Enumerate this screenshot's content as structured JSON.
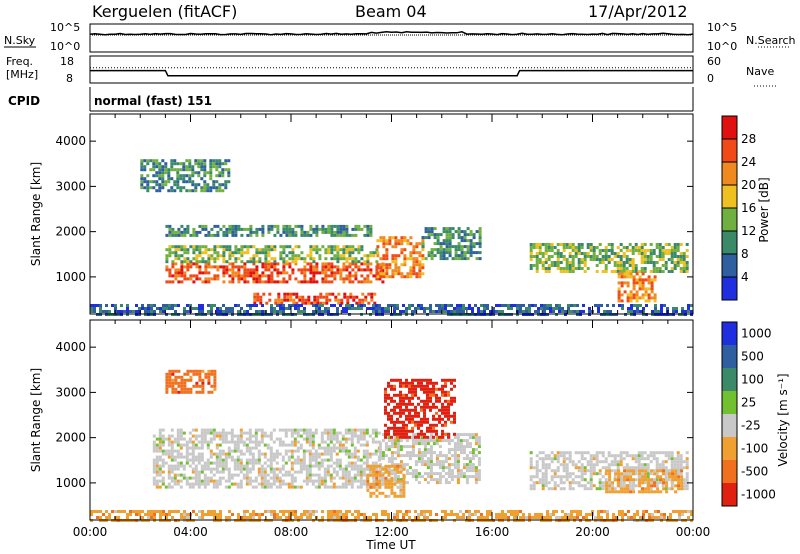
{
  "header": {
    "station": "Kerguelen (fitACF)",
    "beam": "Beam 04",
    "date": "17/Apr/2012"
  },
  "noise_panel": {
    "left_label": "N.Sky",
    "right_label": "N.Search",
    "left_ticks": [
      "10^5",
      "10^0"
    ],
    "right_ticks": [
      "10^5",
      "10^0"
    ]
  },
  "freq_panel": {
    "left_label_1": "Freq.",
    "left_label_2": "[MHz]",
    "left_ticks": [
      "18",
      "8"
    ],
    "right_label": "Nave",
    "right_ticks": [
      "60",
      "0"
    ],
    "freq_mhz": {
      "times_h": [
        0,
        3,
        3.1,
        17,
        17.1,
        24
      ],
      "values": [
        12.6,
        12.6,
        10.7,
        10.7,
        12.6,
        12.6
      ]
    },
    "nave": {
      "times_h": [
        0,
        24
      ],
      "values": [
        34,
        34
      ]
    }
  },
  "cpid_panel": {
    "label": "CPID",
    "value": "normal (fast) 151"
  },
  "colors": {
    "power_scale": [
      "#1f2fe0",
      "#2f5fa0",
      "#3a8a6a",
      "#70b040",
      "#f0c020",
      "#f08a20",
      "#f04a18",
      "#e01010"
    ],
    "velocity_scale": [
      "#1f2fe0",
      "#2f5fa0",
      "#3a8a6a",
      "#70c030",
      "#c8c8c8",
      "#f0a030",
      "#f07020",
      "#e02010"
    ],
    "background": "#ffffff",
    "frame": "#000000"
  },
  "chart_data": [
    {
      "type": "heatmap",
      "title": "",
      "xlabel": "Time UT",
      "ylabel": "Slant Range [km]",
      "xlim": [
        0,
        24
      ],
      "ylim": [
        180,
        4600
      ],
      "x_ticks": [
        "00:00",
        "04:00",
        "08:00",
        "12:00",
        "16:00",
        "20:00",
        "00:00"
      ],
      "y_ticks": [
        1000,
        2000,
        3000,
        4000
      ],
      "colorbar_label": "Power [dB]",
      "colorbar_ticks": [
        4,
        8,
        12,
        16,
        20,
        24,
        28
      ],
      "regions": [
        {
          "t0": 3.0,
          "t1": 11.6,
          "r0": 880,
          "r1": 1320,
          "level": 26
        },
        {
          "t0": 3.0,
          "t1": 11.4,
          "r0": 1320,
          "r1": 1700,
          "level": 14
        },
        {
          "t0": 3.0,
          "t1": 11.2,
          "r0": 1900,
          "r1": 2150,
          "level": 10
        },
        {
          "t0": 6.5,
          "t1": 11.3,
          "r0": 420,
          "r1": 650,
          "level": 27
        },
        {
          "t0": 11.4,
          "t1": 13.2,
          "r0": 1000,
          "r1": 1900,
          "level": 24
        },
        {
          "t0": 13.2,
          "t1": 15.5,
          "r0": 1400,
          "r1": 2100,
          "level": 10
        },
        {
          "t0": 2.0,
          "t1": 5.5,
          "r0": 2900,
          "r1": 3600,
          "level": 8
        },
        {
          "t0": 17.5,
          "t1": 23.8,
          "r0": 1100,
          "r1": 1750,
          "level": 12
        },
        {
          "t0": 21.0,
          "t1": 22.5,
          "r0": 450,
          "r1": 1100,
          "level": 24
        },
        {
          "t0": 0.0,
          "t1": 24.0,
          "r0": 180,
          "r1": 400,
          "level": 6
        }
      ]
    },
    {
      "type": "heatmap",
      "title": "",
      "xlabel": "Time UT",
      "ylabel": "Slant Range [km]",
      "xlim": [
        0,
        24
      ],
      "ylim": [
        180,
        4600
      ],
      "x_ticks": [
        "00:00",
        "04:00",
        "08:00",
        "12:00",
        "16:00",
        "20:00",
        "00:00"
      ],
      "y_ticks": [
        1000,
        2000,
        3000,
        4000
      ],
      "colorbar_label": "Velocity [m s⁻¹]",
      "colorbar_ticks": [
        "1000",
        "500",
        "100",
        "25",
        "-25",
        "-100",
        "-500",
        "-1000"
      ],
      "regions": [
        {
          "t0": 2.5,
          "t1": 11.5,
          "r0": 900,
          "r1": 2200,
          "level": 4
        },
        {
          "t0": 11.5,
          "t1": 15.5,
          "r0": 1000,
          "r1": 2100,
          "level": 4
        },
        {
          "t0": 11.7,
          "t1": 14.5,
          "r0": 2000,
          "r1": 3300,
          "level": 7
        },
        {
          "t0": 3.0,
          "t1": 5.0,
          "r0": 3000,
          "r1": 3500,
          "level": 6
        },
        {
          "t0": 11.0,
          "t1": 12.5,
          "r0": 700,
          "r1": 1400,
          "level": 5
        },
        {
          "t0": 17.5,
          "t1": 23.8,
          "r0": 900,
          "r1": 1700,
          "level": 4
        },
        {
          "t0": 20.5,
          "t1": 23.5,
          "r0": 800,
          "r1": 1300,
          "level": 5
        },
        {
          "t0": 0.0,
          "t1": 24.0,
          "r0": 180,
          "r1": 400,
          "level": 5
        }
      ]
    }
  ]
}
